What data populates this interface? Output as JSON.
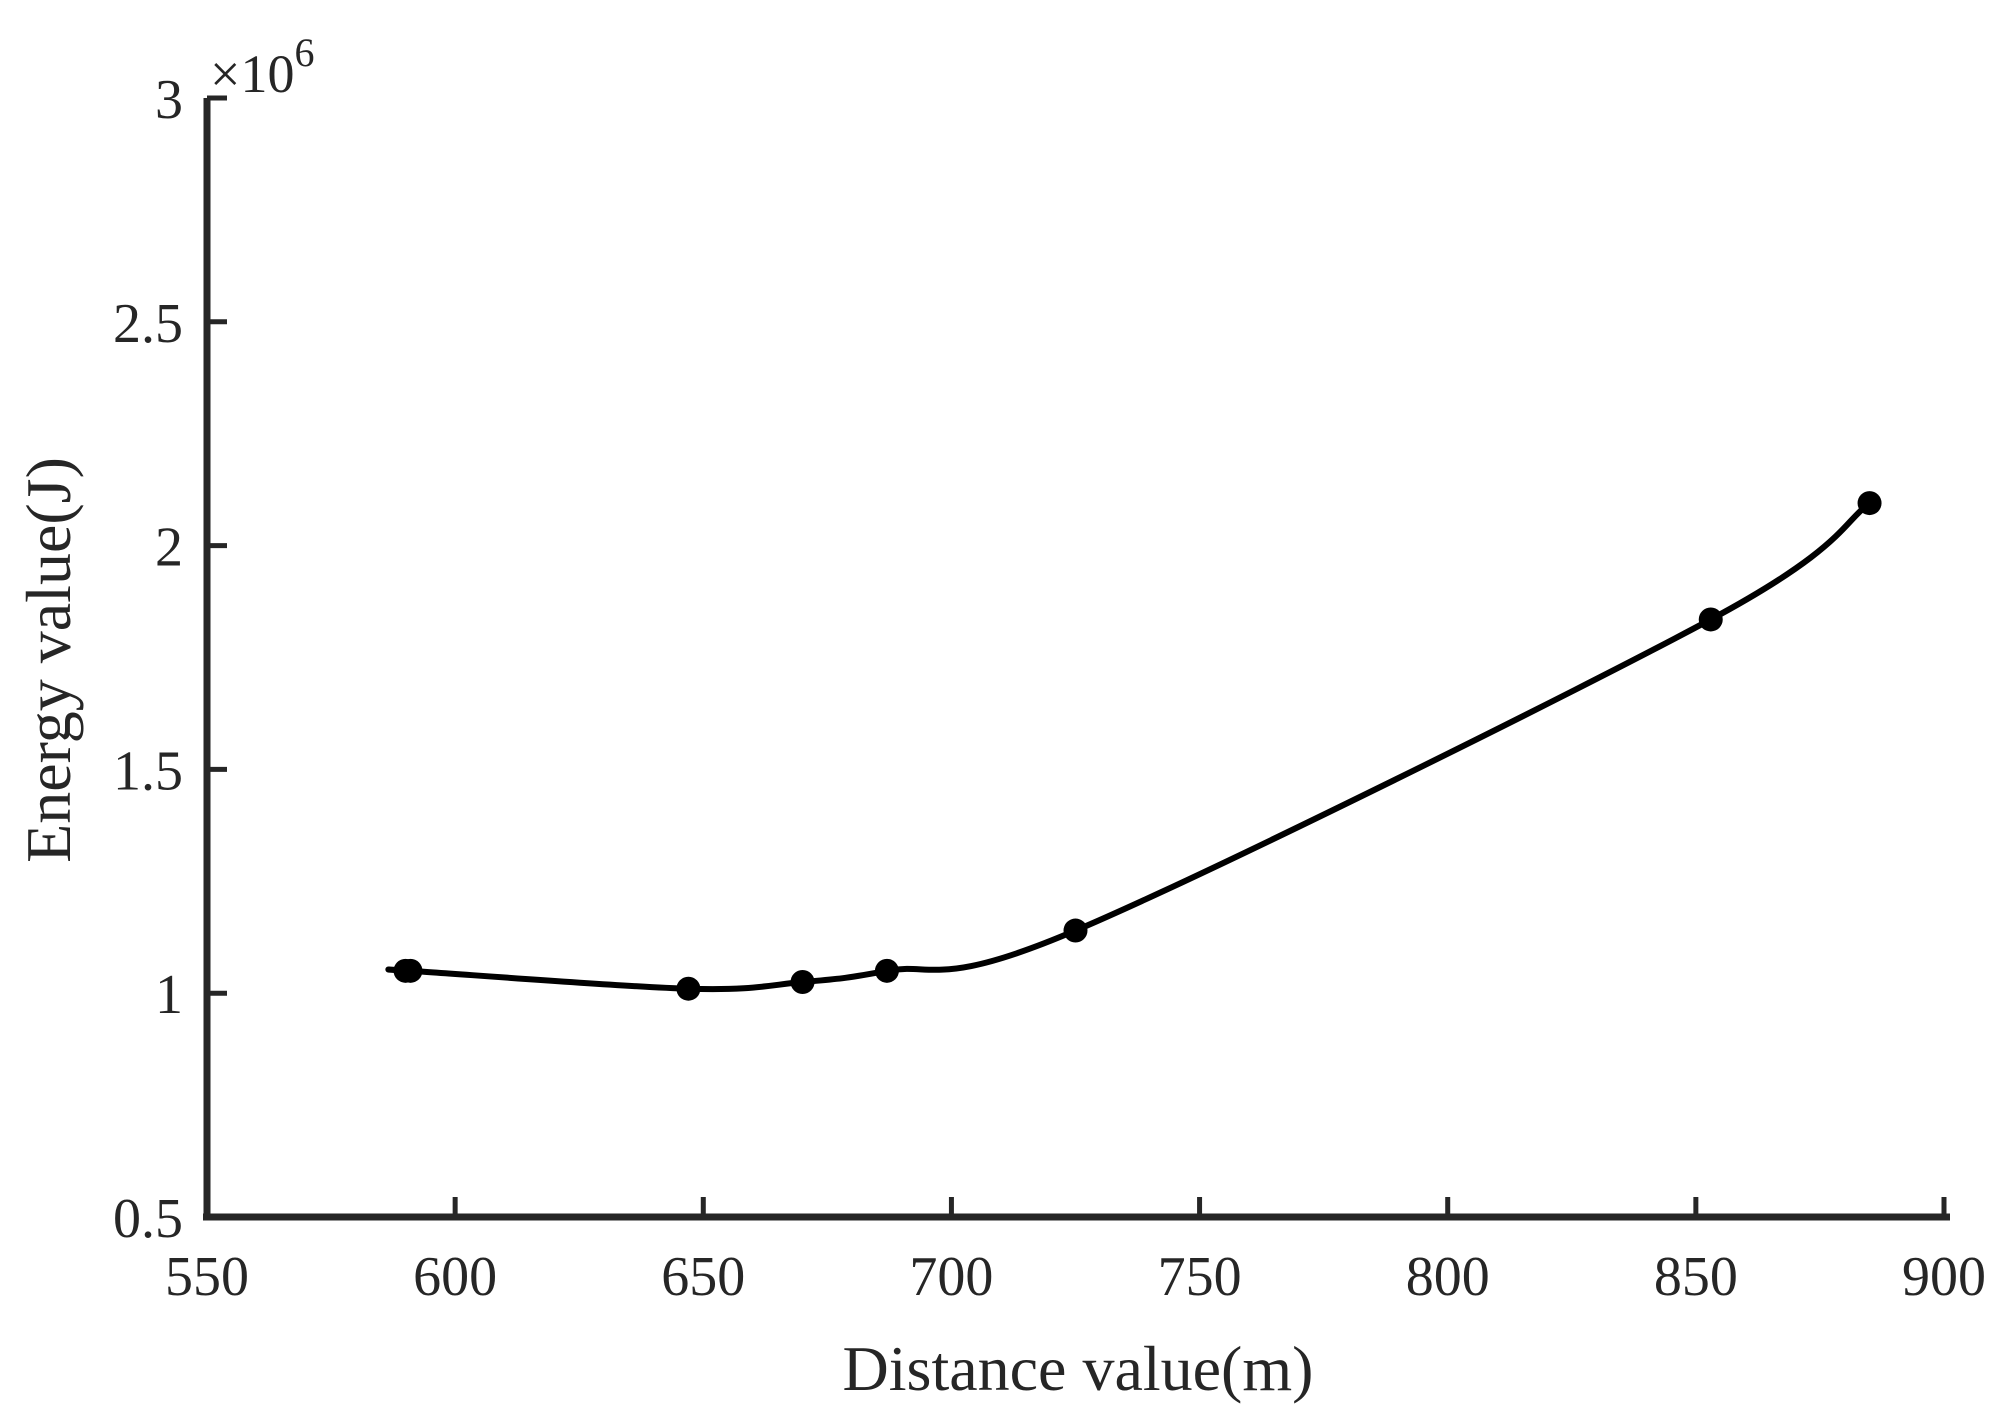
{
  "chart_data": {
    "type": "line",
    "title": "",
    "xlabel": "Distance value(m)",
    "ylabel": "Energy value(J)",
    "y_exponent": {
      "base": "×10",
      "power": "6"
    },
    "xlim": [
      550,
      900
    ],
    "ylim": [
      0.5,
      3
    ],
    "x_ticks": [
      550,
      600,
      650,
      700,
      750,
      800,
      850,
      900
    ],
    "x_tick_labels": [
      "550",
      "600",
      "650",
      "700",
      "750",
      "800",
      "850",
      "900"
    ],
    "y_ticks": [
      0.5,
      1,
      1.5,
      2,
      2.5,
      3
    ],
    "y_tick_labels": [
      "0.5",
      "1",
      "1.5",
      "2",
      "2.5",
      "3"
    ],
    "grid": false,
    "series": [
      {
        "x": [
          590,
          591,
          647,
          670,
          687,
          725,
          853,
          885
        ],
        "values": [
          1.05,
          1.05,
          1.01,
          1.025,
          1.05,
          1.14,
          1.835,
          2.095
        ],
        "color": "#000000",
        "marker": "circle"
      }
    ]
  }
}
